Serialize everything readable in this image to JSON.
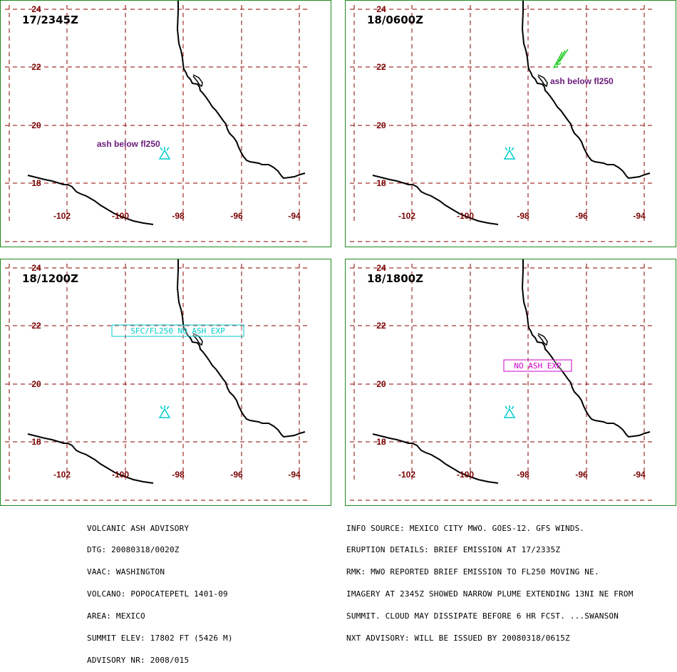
{
  "panels": [
    {
      "time": "17/2345Z",
      "ash_label": "ash below fl250",
      "box_label": "",
      "box_color": "",
      "volcano_color": "#00cccc"
    },
    {
      "time": "18/0600Z",
      "ash_label": "ash below fl250",
      "box_label": "",
      "box_color": "",
      "volcano_color": "#00cccc"
    },
    {
      "time": "18/1200Z",
      "ash_label": "",
      "box_label": "SFC/FL250 NO ASH EXP",
      "box_color": "#00cccc",
      "volcano_color": "#00cccc"
    },
    {
      "time": "18/1800Z",
      "ash_label": "",
      "box_label": "NO ASH EXP",
      "box_color": "#cc00cc",
      "volcano_color": "#00cccc"
    }
  ],
  "map": {
    "lat_ticks": [
      "24",
      "22",
      "20",
      "18"
    ],
    "lon_ticks": [
      "-102",
      "-100",
      "-98",
      "-96",
      "-94"
    ],
    "grid_color": "#8b0000",
    "coast_color": "#000000",
    "wind_barb_color": "#22cc22"
  },
  "footer_left": [
    "VOLCANIC ASH ADVISORY",
    "DTG: 20080318/0020Z",
    "VAAC: WASHINGTON",
    "VOLCANO: POPOCATEPETL 1401-09",
    "AREA: MEXICO",
    "SUMMIT ELEV: 17802 FT (5426 M)",
    "ADVISORY NR: 2008/015"
  ],
  "footer_right": [
    "INFO SOURCE: MEXICO CITY MWO. GOES-12. GFS WINDS.",
    "ERUPTION DETAILS: BRIEF EMISSION AT 17/2335Z",
    "RMK: MWO REPORTED BRIEF EMISSION TO FL250 MOVING NE.",
    "IMAGERY AT 2345Z SHOWED NARROW PLUME EXTENDING 13NI NE FROM",
    "SUMMIT. CLOUD MAY DISSIPATE BEFORE 6 HR FCST. ...SWANSON"
  ],
  "footer_right_last": "NXT ADVISORY: WILL BE ISSUED BY 20080318/0615Z"
}
